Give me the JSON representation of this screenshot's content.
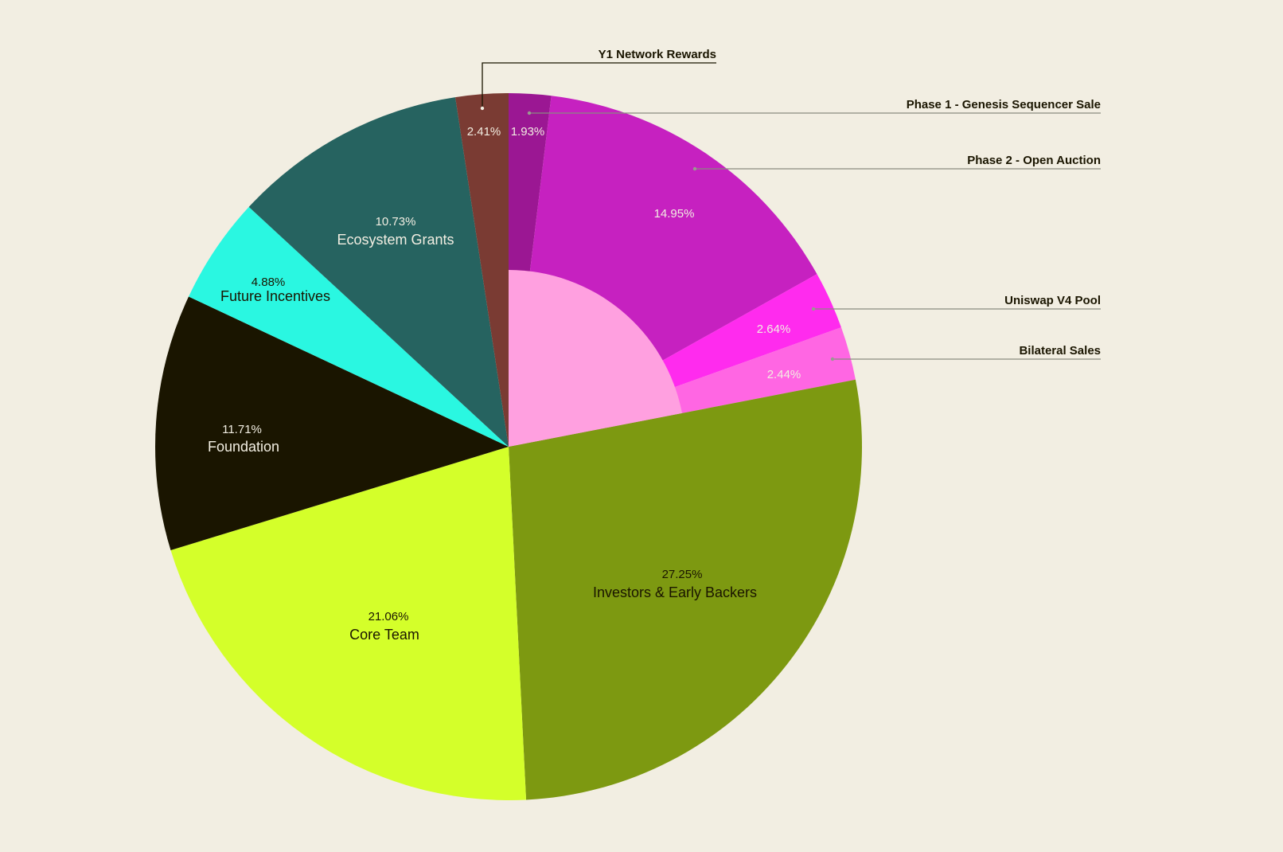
{
  "chart_data": {
    "type": "pie",
    "title": "",
    "start": "top, clockwise",
    "slices": [
      {
        "name": "Phase 1 - Genesis Sequencer Sale",
        "label": "1.93%",
        "value": 1.93,
        "color": "#9b1793",
        "text_color": "#f2eee2",
        "callout": true,
        "group": "sale"
      },
      {
        "name": "Phase 2 - Open Auction",
        "label": "14.95%",
        "value": 14.95,
        "color": "#c621c0",
        "text_color": "#f2eee2",
        "callout": true,
        "group": "sale"
      },
      {
        "name": "Uniswap V4 Pool",
        "label": "2.64%",
        "value": 2.64,
        "color": "#ff2bee",
        "text_color": "#f2eee2",
        "callout": true,
        "group": "sale"
      },
      {
        "name": "Bilateral Sales",
        "label": "2.44%",
        "value": 2.44,
        "color": "#ff66e3",
        "text_color": "#f2eee2",
        "callout": true,
        "group": "sale"
      },
      {
        "name": "Investors & Early Backers",
        "label": "27.25%",
        "value": 27.25,
        "color": "#7d9911",
        "text_color": "#1a1500",
        "callout": false
      },
      {
        "name": "Core Team",
        "label": "21.06%",
        "value": 21.06,
        "color": "#d4ff2a",
        "text_color": "#1a1500",
        "callout": false
      },
      {
        "name": "Foundation",
        "label": "11.71%",
        "value": 11.71,
        "color": "#1a1500",
        "text_color": "#f2eee2",
        "callout": false
      },
      {
        "name": "Future Incentives",
        "label": "4.88%",
        "value": 4.88,
        "color": "#2af7e1",
        "text_color": "#1a1500",
        "callout": false
      },
      {
        "name": "Ecosystem Grants",
        "label": "10.73%",
        "value": 10.73,
        "color": "#266360",
        "text_color": "#f2eee2",
        "callout": false
      },
      {
        "name": "Y1 Network Rewards",
        "label": "2.41%",
        "value": 2.41,
        "color": "#7a3b33",
        "text_color": "#f2eee2",
        "callout": true
      }
    ],
    "inner_sector": {
      "covers_group": "sale",
      "color": "#ffa0e0"
    },
    "background": "#f2eee2"
  }
}
